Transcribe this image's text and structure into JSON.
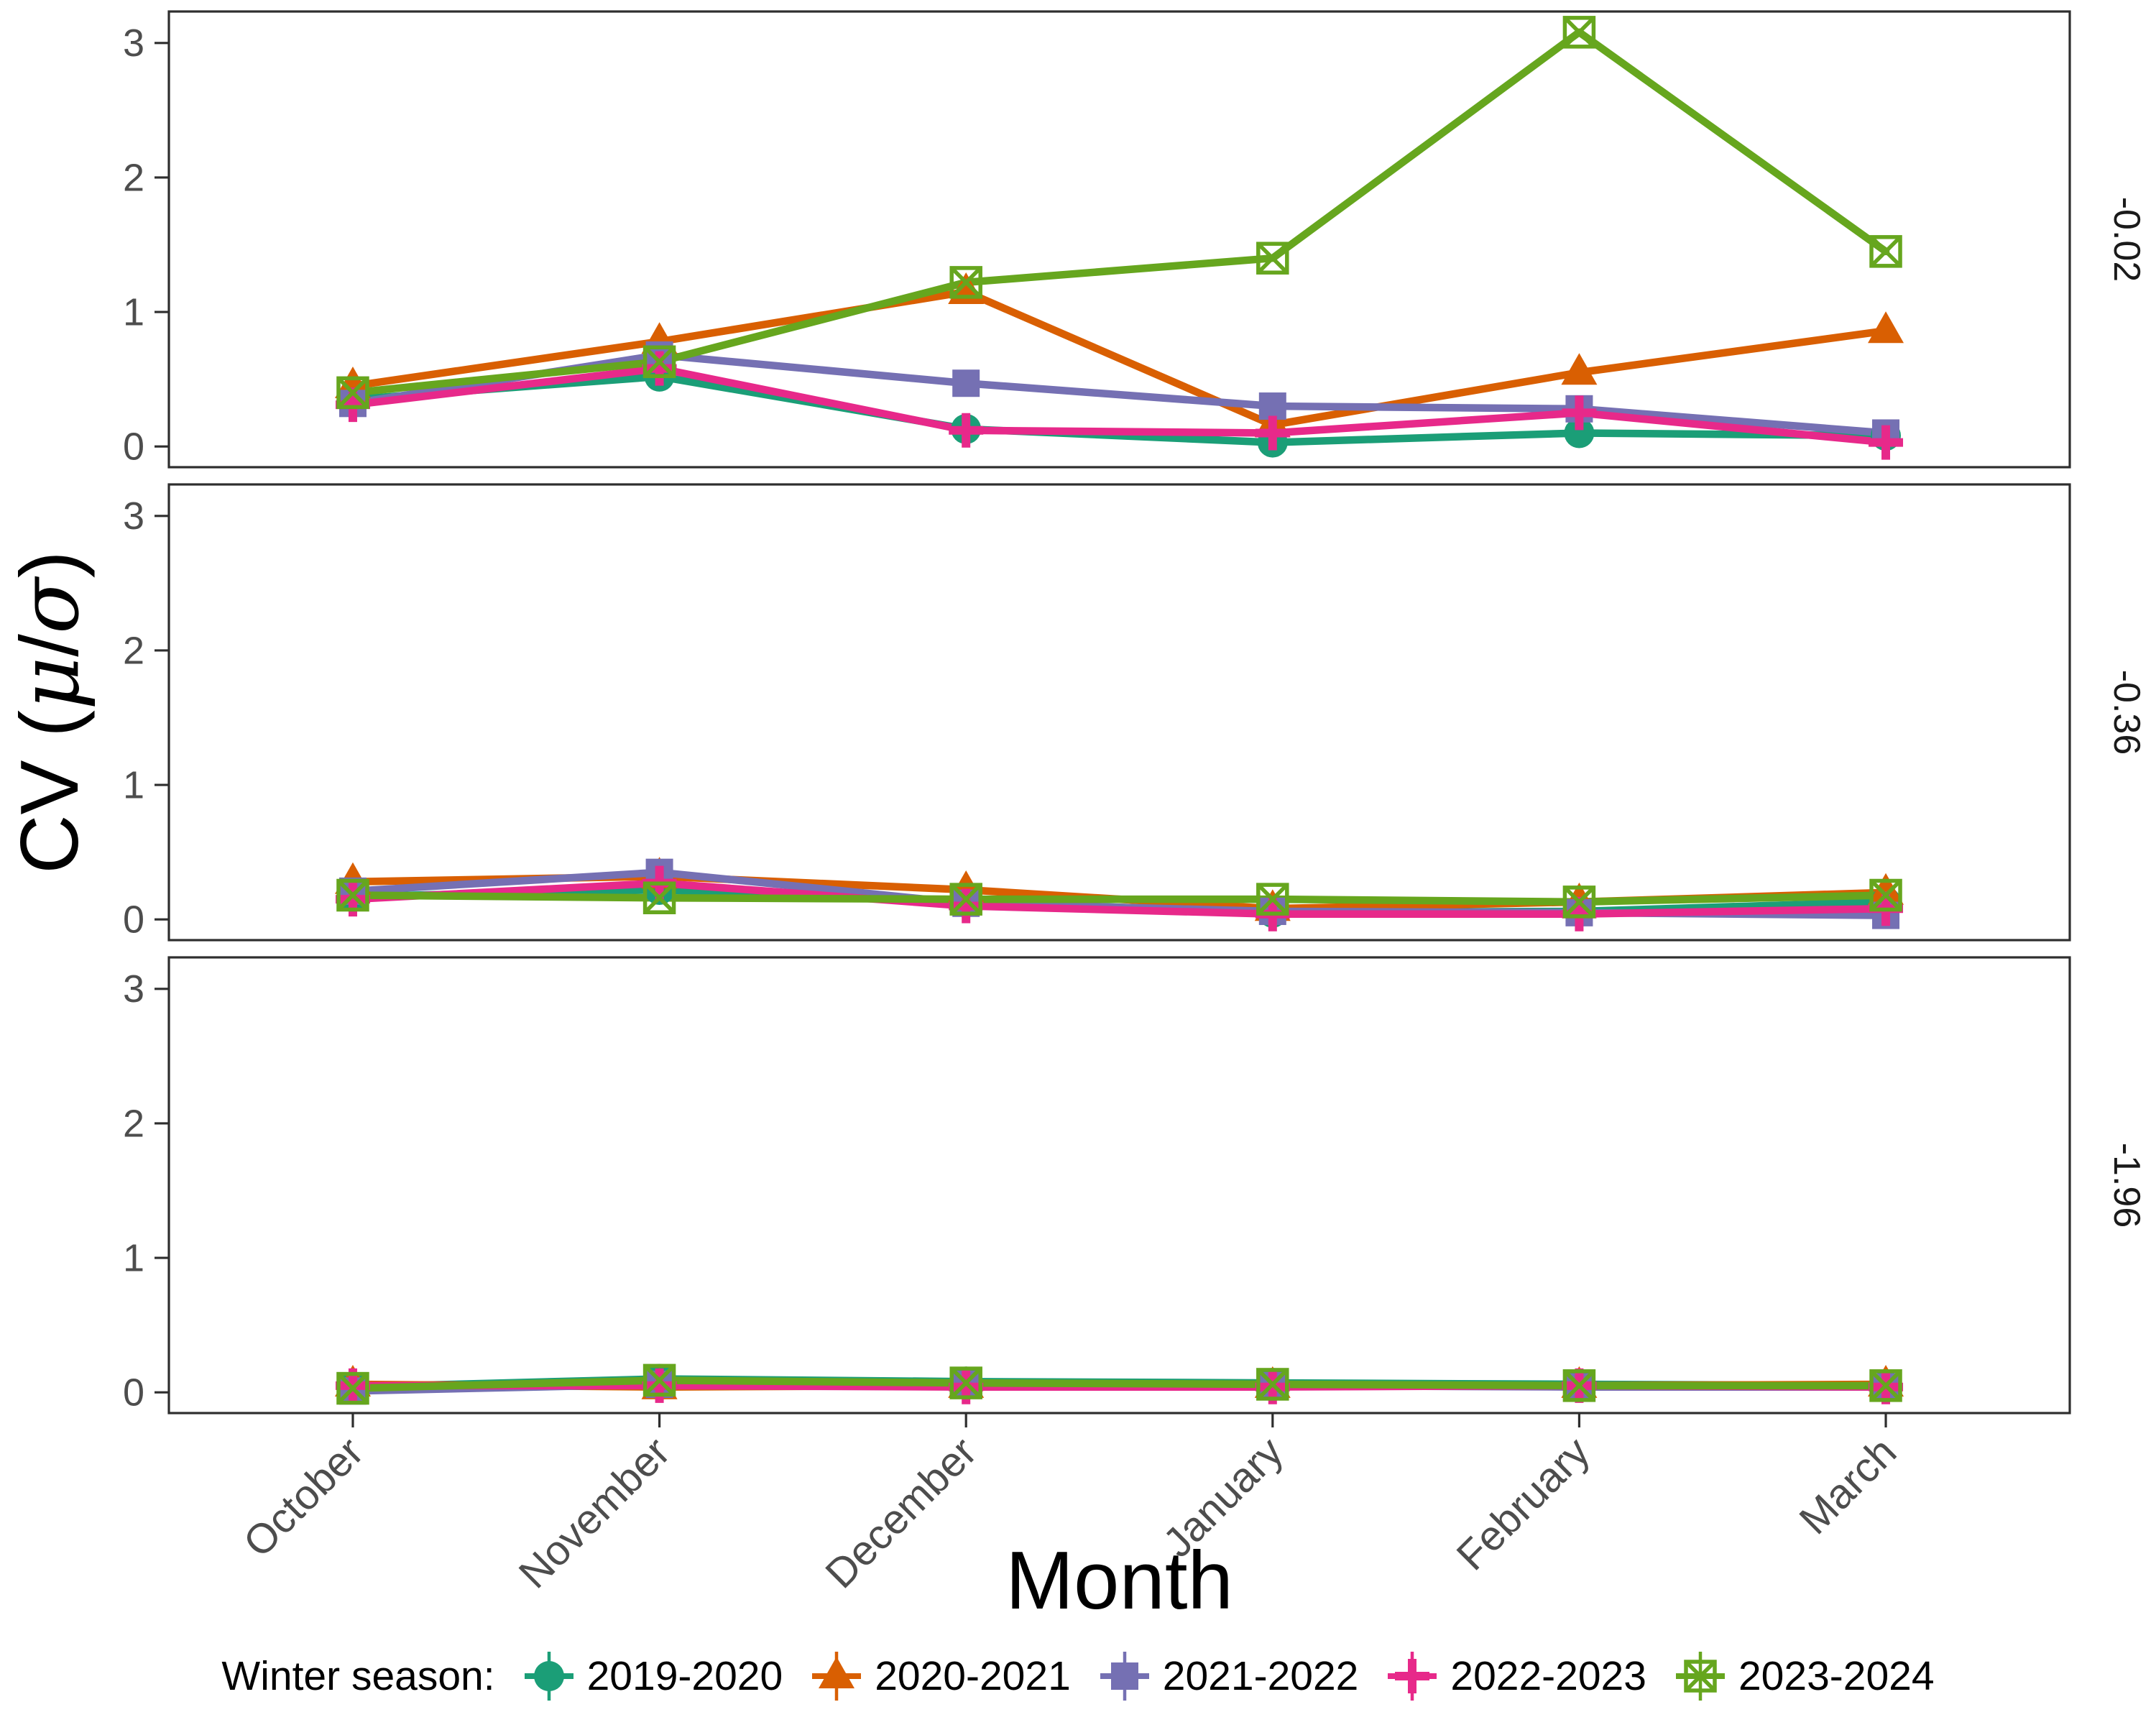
{
  "chart_data": {
    "type": "line",
    "x": [
      "October",
      "November",
      "December",
      "January",
      "February",
      "March"
    ],
    "xlabel": "Month",
    "ylabel": "CV (μ/σ)",
    "ylabel_parts": [
      {
        "t": "CV (",
        "f": "sans"
      },
      {
        "t": "μ",
        "f": "greek"
      },
      {
        "t": "/",
        "f": "sans"
      },
      {
        "t": "σ",
        "f": "greek"
      },
      {
        "t": ")",
        "f": "sans"
      }
    ],
    "ylim": [
      0,
      3
    ],
    "yticks": [
      "0",
      "1",
      "2",
      "3"
    ],
    "grid": false,
    "legend_position": "bottom",
    "legend_title": "Winter season:",
    "facet_labels": [
      "-0.02",
      "-0.36",
      "-1.96"
    ],
    "series": [
      {
        "name": "2019-2020",
        "color": "#1B9E77",
        "marker": "circle",
        "values_by_facet": [
          [
            0.35,
            0.52,
            0.13,
            0.03,
            0.1,
            0.08
          ],
          [
            0.17,
            0.22,
            0.13,
            0.05,
            0.06,
            0.13
          ],
          [
            0.04,
            0.1,
            0.08,
            0.07,
            0.06,
            0.05
          ]
        ]
      },
      {
        "name": "2020-2021",
        "color": "#D95F02",
        "marker": "triangle",
        "values_by_facet": [
          [
            0.45,
            0.78,
            1.15,
            0.16,
            0.55,
            0.86
          ],
          [
            0.28,
            0.32,
            0.22,
            0.08,
            0.13,
            0.2
          ],
          [
            0.06,
            0.04,
            0.05,
            0.05,
            0.05,
            0.06
          ]
        ]
      },
      {
        "name": "2021-2022",
        "color": "#7570B3",
        "marker": "square",
        "values_by_facet": [
          [
            0.32,
            0.68,
            0.47,
            0.3,
            0.28,
            0.1
          ],
          [
            0.21,
            0.35,
            0.12,
            0.06,
            0.05,
            0.03
          ],
          [
            0.01,
            0.06,
            0.06,
            0.05,
            0.04,
            0.04
          ]
        ]
      },
      {
        "name": "2022-2023",
        "color": "#E7298A",
        "marker": "plus",
        "values_by_facet": [
          [
            0.31,
            0.58,
            0.12,
            0.1,
            0.25,
            0.03
          ],
          [
            0.15,
            0.27,
            0.1,
            0.04,
            0.04,
            0.08
          ],
          [
            0.05,
            0.05,
            0.04,
            0.04,
            0.05,
            0.04
          ]
        ],
        "error_half_by_facet": [
          [
            0.1,
            0.05,
            0.04,
            0.1,
            0.05,
            0.09
          ],
          [
            0.1,
            0.04,
            0.03,
            0.05,
            0.03,
            0.07
          ],
          [
            0.07,
            0.06,
            0.05,
            0.05,
            0.05,
            0.05
          ]
        ]
      },
      {
        "name": "2023-2024",
        "color": "#66A61E",
        "marker": "square-cross",
        "values_by_facet": [
          [
            0.4,
            0.63,
            1.22,
            1.4,
            3.08,
            1.45
          ],
          [
            0.18,
            0.16,
            0.15,
            0.15,
            0.13,
            0.18
          ],
          [
            0.03,
            0.09,
            0.07,
            0.06,
            0.05,
            0.05
          ]
        ]
      }
    ]
  }
}
